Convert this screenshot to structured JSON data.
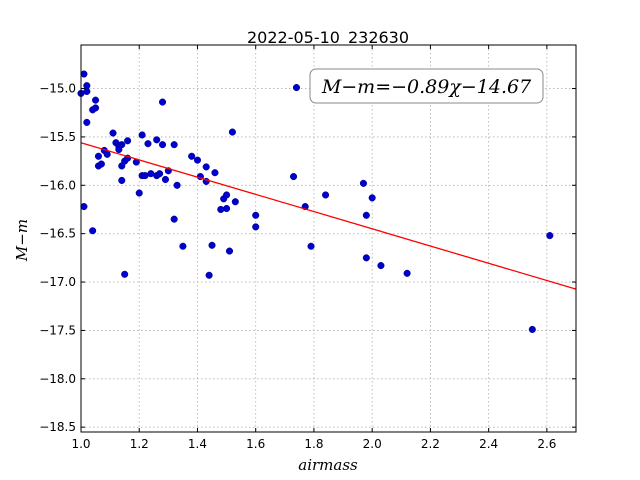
{
  "chart_data": {
    "type": "scatter",
    "title": "2022-05-10_232630",
    "xlabel": "airmass",
    "ylabel": "M−m",
    "xlim": [
      1.0,
      2.7
    ],
    "ylim": [
      -18.55,
      -14.55
    ],
    "y_inverted": true,
    "x_ticks": [
      1.0,
      1.2,
      1.4,
      1.6,
      1.8,
      2.0,
      2.2,
      2.4,
      2.6
    ],
    "x_tick_labels": [
      "1.0",
      "1.2",
      "1.4",
      "1.6",
      "1.8",
      "2.0",
      "2.2",
      "2.4",
      "2.6"
    ],
    "y_ticks": [
      -15.0,
      -15.5,
      -16.0,
      -16.5,
      -17.0,
      -17.5,
      -18.0,
      -18.5
    ],
    "y_tick_labels": [
      "−15.0",
      "−15.5",
      "−16.0",
      "−16.5",
      "−17.0",
      "−17.5",
      "−18.0",
      "−18.5"
    ],
    "grid": true,
    "annotation": "M−m=−0.89χ−14.67",
    "fit": {
      "slope": -0.89,
      "intercept": -14.67,
      "color": "#ff0000"
    },
    "point_color": "#0000cc",
    "points": [
      [
        1.0,
        -15.05
      ],
      [
        1.01,
        -14.85
      ],
      [
        1.02,
        -14.97
      ],
      [
        1.02,
        -15.03
      ],
      [
        1.02,
        -15.35
      ],
      [
        1.01,
        -16.22
      ],
      [
        1.04,
        -16.47
      ],
      [
        1.05,
        -15.12
      ],
      [
        1.05,
        -15.2
      ],
      [
        1.04,
        -15.22
      ],
      [
        1.06,
        -15.7
      ],
      [
        1.06,
        -15.8
      ],
      [
        1.07,
        -15.78
      ],
      [
        1.08,
        -15.64
      ],
      [
        1.09,
        -15.68
      ],
      [
        1.11,
        -15.46
      ],
      [
        1.12,
        -15.56
      ],
      [
        1.13,
        -15.6
      ],
      [
        1.13,
        -15.63
      ],
      [
        1.14,
        -15.58
      ],
      [
        1.14,
        -15.8
      ],
      [
        1.14,
        -15.95
      ],
      [
        1.15,
        -16.92
      ],
      [
        1.15,
        -15.75
      ],
      [
        1.16,
        -15.54
      ],
      [
        1.16,
        -15.72
      ],
      [
        1.19,
        -15.76
      ],
      [
        1.2,
        -16.08
      ],
      [
        1.21,
        -15.48
      ],
      [
        1.21,
        -15.9
      ],
      [
        1.22,
        -15.9
      ],
      [
        1.23,
        -15.57
      ],
      [
        1.24,
        -15.88
      ],
      [
        1.26,
        -15.53
      ],
      [
        1.26,
        -15.9
      ],
      [
        1.27,
        -15.88
      ],
      [
        1.28,
        -15.58
      ],
      [
        1.28,
        -15.14
      ],
      [
        1.29,
        -15.94
      ],
      [
        1.3,
        -15.85
      ],
      [
        1.32,
        -15.58
      ],
      [
        1.32,
        -16.35
      ],
      [
        1.33,
        -16.0
      ],
      [
        1.35,
        -16.63
      ],
      [
        1.38,
        -15.7
      ],
      [
        1.4,
        -15.74
      ],
      [
        1.41,
        -15.91
      ],
      [
        1.43,
        -15.81
      ],
      [
        1.43,
        -15.96
      ],
      [
        1.44,
        -16.93
      ],
      [
        1.45,
        -16.62
      ],
      [
        1.46,
        -15.87
      ],
      [
        1.48,
        -16.25
      ],
      [
        1.49,
        -16.14
      ],
      [
        1.5,
        -16.1
      ],
      [
        1.5,
        -16.24
      ],
      [
        1.51,
        -16.68
      ],
      [
        1.52,
        -15.45
      ],
      [
        1.53,
        -16.17
      ],
      [
        1.6,
        -16.43
      ],
      [
        1.6,
        -16.31
      ],
      [
        1.73,
        -15.91
      ],
      [
        1.74,
        -14.99
      ],
      [
        1.77,
        -16.22
      ],
      [
        1.79,
        -16.63
      ],
      [
        1.84,
        -16.1
      ],
      [
        1.97,
        -15.98
      ],
      [
        1.98,
        -16.31
      ],
      [
        1.98,
        -16.75
      ],
      [
        2.0,
        -16.13
      ],
      [
        2.03,
        -16.83
      ],
      [
        2.12,
        -16.91
      ],
      [
        2.55,
        -17.49
      ],
      [
        2.61,
        -16.52
      ]
    ]
  }
}
